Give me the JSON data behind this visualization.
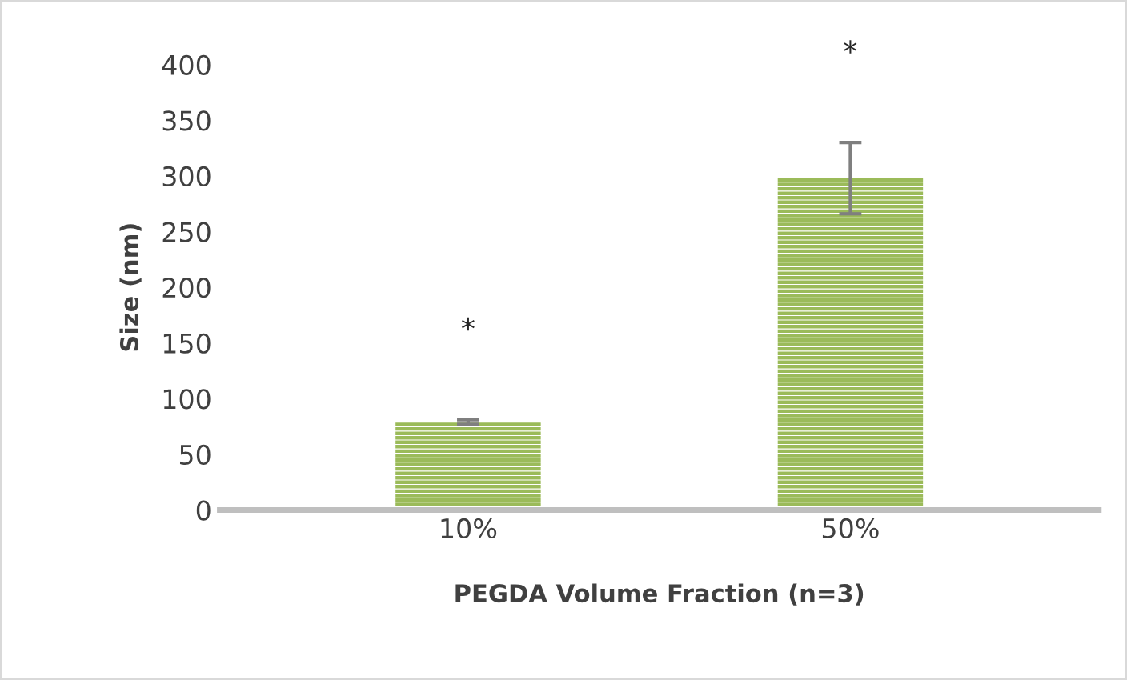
{
  "chart_data": {
    "type": "bar",
    "xlabel": "PEGDA Volume Fraction (n=3)",
    "ylabel": "Size (nm)",
    "categories": [
      "10%",
      "50%"
    ],
    "series": [
      {
        "color": "#9bbb59",
        "values": [
          79,
          298
        ],
        "errors": [
          [
            77,
            81
          ],
          [
            266,
            330
          ]
        ]
      }
    ],
    "ylim": [
      0,
      400
    ],
    "yticks": [
      0,
      50,
      100,
      150,
      200,
      250,
      300,
      350,
      400
    ],
    "grid": false,
    "legend": false,
    "annotations": [
      "*",
      "*"
    ]
  }
}
